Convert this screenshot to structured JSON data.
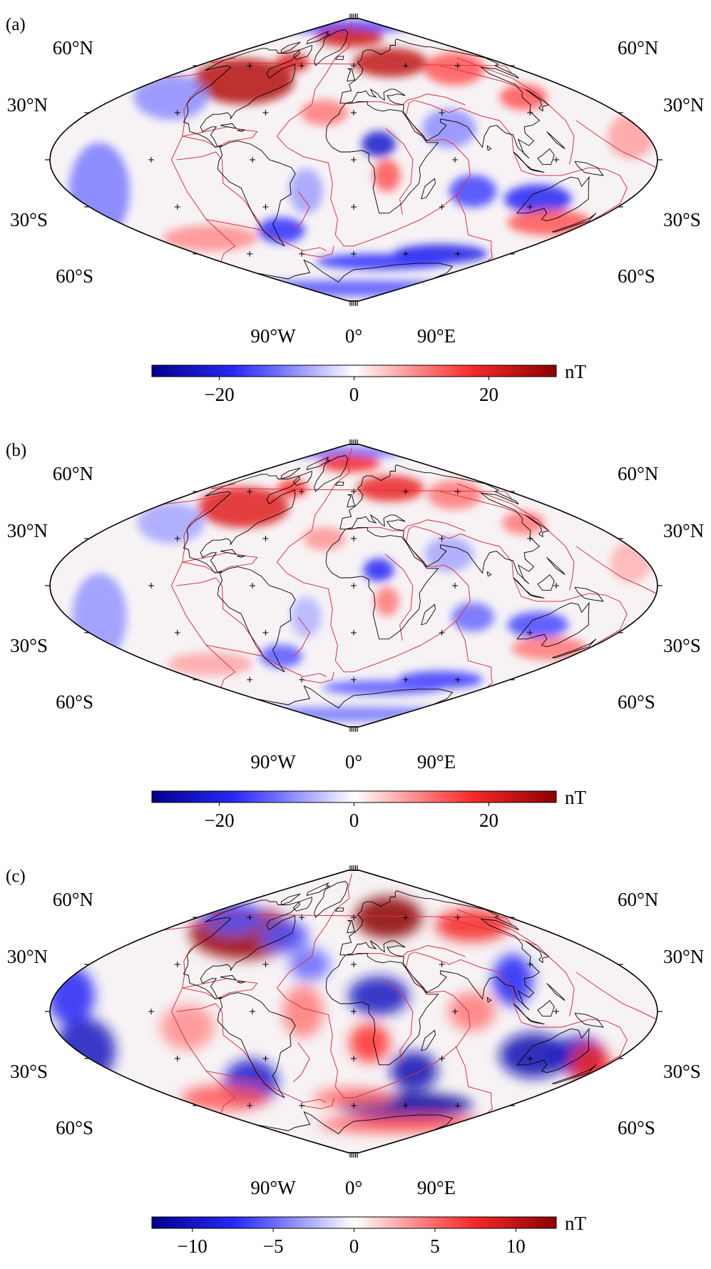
{
  "colormap": {
    "low": "#00008b",
    "mid_low": "#2b2bff",
    "center": "#ffffff",
    "mid_high": "#ff2b2b",
    "high": "#8b0000",
    "coast_color": "#000000",
    "plate_boundary_color": "#e03040"
  },
  "panels": [
    {
      "label": "(a)",
      "lat_labels_left": [
        "60°N",
        "30°N",
        "30°S",
        "60°S"
      ],
      "lat_labels_right": [
        "60°N",
        "30°N",
        "30°S",
        "60°S"
      ],
      "lon_labels": [
        "90°W",
        "0°",
        "90°E"
      ],
      "colorbar": {
        "unit": "nT",
        "range": [
          -30,
          30
        ],
        "ticks": [
          {
            "value": -20,
            "label": "−20"
          },
          {
            "value": 0,
            "label": "0"
          },
          {
            "value": 20,
            "label": "20"
          }
        ]
      }
    },
    {
      "label": "(b)",
      "lat_labels_left": [
        "60°N",
        "30°N",
        "30°S",
        "60°S"
      ],
      "lat_labels_right": [
        "60°N",
        "30°N",
        "30°S",
        "60°S"
      ],
      "lon_labels": [
        "90°W",
        "0°",
        "90°E"
      ],
      "colorbar": {
        "unit": "nT",
        "range": [
          -30,
          30
        ],
        "ticks": [
          {
            "value": -20,
            "label": "−20"
          },
          {
            "value": 0,
            "label": "0"
          },
          {
            "value": 20,
            "label": "20"
          }
        ]
      }
    },
    {
      "label": "(c)",
      "lat_labels_left": [
        "60°N",
        "30°N",
        "30°S",
        "60°S"
      ],
      "lat_labels_right": [
        "60°N",
        "30°N",
        "30°S",
        "60°S"
      ],
      "lon_labels": [
        "90°W",
        "0°",
        "90°E"
      ],
      "colorbar": {
        "unit": "nT",
        "range": [
          -12.5,
          12.5
        ],
        "ticks": [
          {
            "value": -10,
            "label": "−10"
          },
          {
            "value": -5,
            "label": "−5"
          },
          {
            "value": 0,
            "label": "0"
          },
          {
            "value": 5,
            "label": "5"
          },
          {
            "value": 10,
            "label": "10"
          }
        ]
      }
    }
  ]
}
